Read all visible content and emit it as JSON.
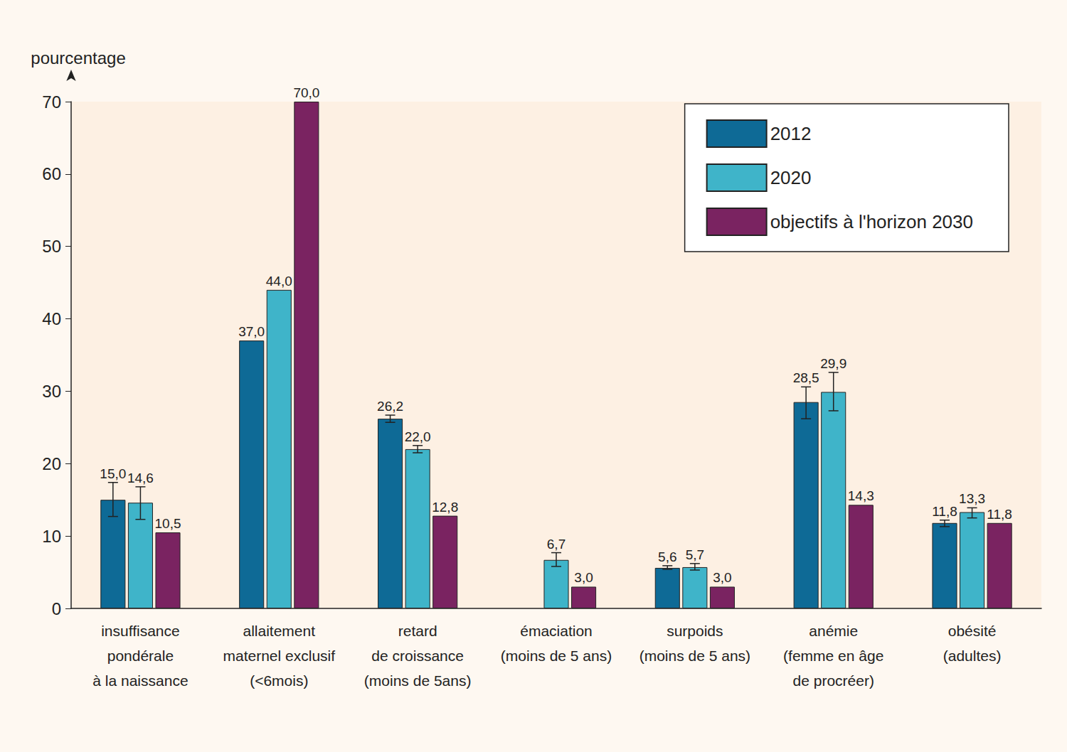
{
  "chart_data": {
    "type": "bar",
    "y_label": "pourcentage",
    "categories": [
      "insuffisance\npondérale\nà la naissance",
      "allaitement\nmaternel exclusif\n(<6mois)",
      "retard\nde croissance\n(moins de 5ans)",
      "émaciation\n(moins de 5 ans)",
      "surpoids\n(moins de 5 ans)",
      "anémie\n(femme en âge\nde procréer)",
      "obésité\n(adultes)"
    ],
    "series": [
      {
        "name": "2012",
        "color": "#0e6a96",
        "values": [
          15.0,
          37.0,
          26.2,
          null,
          5.6,
          28.5,
          11.8
        ],
        "value_labels": [
          "15,0",
          "37,0",
          "26,2",
          null,
          "5,6",
          "28,5",
          "11,8"
        ],
        "errors": [
          [
            12.7,
            17.4
          ],
          null,
          [
            25.7,
            26.7
          ],
          null,
          [
            5.4,
            5.9
          ],
          [
            26.2,
            30.6
          ],
          [
            11.3,
            12.2
          ]
        ]
      },
      {
        "name": "2020",
        "color": "#3fb4c9",
        "values": [
          14.6,
          44.0,
          22.0,
          6.7,
          5.7,
          29.9,
          13.3
        ],
        "value_labels": [
          "14,6",
          "44,0",
          "22,0",
          "6,7",
          "5,7",
          "29,9",
          "13,3"
        ],
        "errors": [
          [
            12.3,
            16.8
          ],
          null,
          [
            21.5,
            22.5
          ],
          [
            5.8,
            7.7
          ],
          [
            5.3,
            6.2
          ],
          [
            27.3,
            32.6
          ],
          [
            12.5,
            13.9
          ]
        ]
      },
      {
        "name": "objectifs à l'horizon 2030",
        "color": "#7a2361",
        "values": [
          10.5,
          70.0,
          12.8,
          3.0,
          3.0,
          14.3,
          11.8
        ],
        "value_labels": [
          "10,5",
          "70,0",
          "12,8",
          "3,0",
          "3,0",
          "14,3",
          "11,8"
        ],
        "errors": [
          null,
          null,
          null,
          null,
          null,
          null,
          null
        ]
      }
    ],
    "ylim": [
      0,
      70
    ],
    "yticks": [
      0,
      10,
      20,
      30,
      40,
      50,
      60,
      70
    ],
    "grid": false,
    "legend": "upper right",
    "data_labels": true
  }
}
